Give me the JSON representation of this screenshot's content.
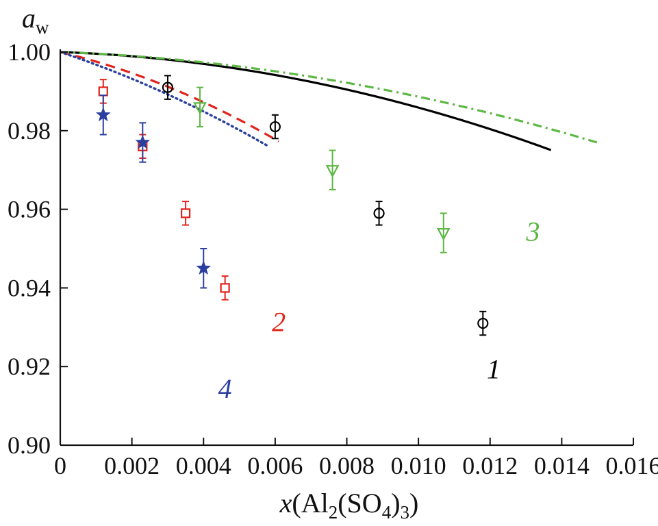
{
  "chart_data": {
    "type": "scatter",
    "title": "",
    "xlabel": {
      "parts": [
        {
          "text": "x",
          "style": "italic"
        },
        {
          "text": "(Al",
          "style": "normal"
        },
        {
          "text": "2",
          "style": "sub"
        },
        {
          "text": "(SO",
          "style": "normal"
        },
        {
          "text": "4",
          "style": "sub"
        },
        {
          "text": ")",
          "style": "normal"
        },
        {
          "text": "3",
          "style": "sub"
        },
        {
          "text": ")",
          "style": "normal"
        }
      ]
    },
    "ylabel": {
      "parts": [
        {
          "text": "a",
          "style": "italic"
        },
        {
          "text": "w",
          "style": "sub"
        }
      ]
    },
    "xlim": [
      0,
      0.016
    ],
    "ylim": [
      0.9,
      1.0
    ],
    "x_ticks": [
      0,
      0.002,
      0.004,
      0.006,
      0.008,
      0.01,
      0.012,
      0.014,
      0.016
    ],
    "x_tick_labels": [
      "0",
      "0.002",
      "0.004",
      "0.006",
      "0.008",
      "0.010",
      "0.012",
      "0.014",
      "0.016"
    ],
    "y_ticks": [
      0.9,
      0.92,
      0.94,
      0.96,
      0.98,
      1.0
    ],
    "y_tick_labels": [
      "0.90",
      "0.92",
      "0.94",
      "0.96",
      "0.98",
      "1.00"
    ],
    "grid": false,
    "legend": "none",
    "series": [
      {
        "name": "1",
        "color": "#000000",
        "line_style": "solid",
        "marker": "circle-plus",
        "curve_a": 0.313,
        "curve_b": 110,
        "curve_x_end": 0.0137,
        "points": [
          {
            "x": 0.003,
            "y": 0.991,
            "err": 0.003
          },
          {
            "x": 0.006,
            "y": 0.981,
            "err": 0.003
          },
          {
            "x": 0.0089,
            "y": 0.959,
            "err": 0.003
          },
          {
            "x": 0.0118,
            "y": 0.931,
            "err": 0.003
          }
        ]
      },
      {
        "name": "2",
        "color": "#e2231a",
        "line_style": "dashed",
        "marker": "square",
        "curve_a": 2.17,
        "curve_b": 255,
        "curve_x_end": 0.0061,
        "points": [
          {
            "x": 0.0012,
            "y": 0.99,
            "err": 0.003
          },
          {
            "x": 0.0023,
            "y": 0.976,
            "err": 0.003
          },
          {
            "x": 0.0035,
            "y": 0.959,
            "err": 0.003
          },
          {
            "x": 0.0046,
            "y": 0.94,
            "err": 0.003
          }
        ]
      },
      {
        "name": "3",
        "color": "#5db744",
        "line_style": "dashdot",
        "marker": "triangle-down",
        "curve_a": 0.336,
        "curve_b": 80,
        "curve_x_end": 0.015,
        "points": [
          {
            "x": 0.0039,
            "y": 0.986,
            "err": 0.005
          },
          {
            "x": 0.0076,
            "y": 0.97,
            "err": 0.005
          },
          {
            "x": 0.0107,
            "y": 0.954,
            "err": 0.005
          }
        ]
      },
      {
        "name": "4",
        "color": "#2b3f9e",
        "line_style": "dotted",
        "marker": "star",
        "curve_a": 3.02,
        "curve_b": 190,
        "curve_x_end": 0.0058,
        "points": [
          {
            "x": 0.0012,
            "y": 0.984,
            "err": 0.005
          },
          {
            "x": 0.0023,
            "y": 0.977,
            "err": 0.005
          },
          {
            "x": 0.004,
            "y": 0.945,
            "err": 0.005
          }
        ]
      }
    ],
    "annotations": [
      {
        "text": "1",
        "series": "1",
        "x": 0.0121,
        "y": 0.917
      },
      {
        "text": "2",
        "series": "2",
        "x": 0.0061,
        "y": 0.929
      },
      {
        "text": "3",
        "series": "3",
        "x": 0.0132,
        "y": 0.952
      },
      {
        "text": "4",
        "series": "4",
        "x": 0.0046,
        "y": 0.912
      }
    ]
  }
}
